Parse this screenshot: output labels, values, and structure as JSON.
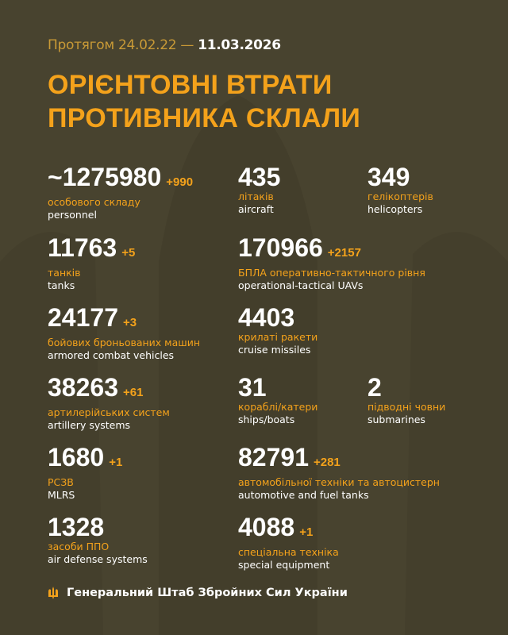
{
  "header": {
    "period_prefix": "Протягом 24.02.22 —",
    "period_end": "11.03.2026",
    "title_line1": "ОРІЄНТОВНІ ВТРАТИ",
    "title_line2": "ПРОТИВНИКА СКЛАЛИ"
  },
  "stats": [
    {
      "value": "~1275980",
      "delta": "+990",
      "ua": "особового складу",
      "en": "personnel"
    },
    {
      "value": "435",
      "delta": "",
      "ua": "літаків",
      "en": "aircraft"
    },
    {
      "value": "349",
      "delta": "",
      "ua": "гелікоптерів",
      "en": "helicopters"
    },
    {
      "value": "11763",
      "delta": "+5",
      "ua": "танків",
      "en": "tanks"
    },
    {
      "value": "170966",
      "delta": "+2157",
      "ua": "БПЛА оперативно-тактичного рівня",
      "en": "operational-tactical UAVs"
    },
    {
      "value": "24177",
      "delta": "+3",
      "ua": "бойових броньованих машин",
      "en": "armored combat vehicles"
    },
    {
      "value": "4403",
      "delta": "",
      "ua": "крилаті ракети",
      "en": "cruise missiles"
    },
    {
      "value": "38263",
      "delta": "+61",
      "ua": "артилерійських систем",
      "en": "artillery systems"
    },
    {
      "value": "31",
      "delta": "",
      "ua": "кораблі/катери",
      "en": "ships/boats"
    },
    {
      "value": "2",
      "delta": "",
      "ua": "підводні човни",
      "en": "submarines"
    },
    {
      "value": "1680",
      "delta": "+1",
      "ua": "РСЗВ",
      "en": "MLRS"
    },
    {
      "value": "82791",
      "delta": "+281",
      "ua": "автомобільної техніки та автоцистерн",
      "en": "automotive and fuel tanks"
    },
    {
      "value": "1328",
      "delta": "",
      "ua": "засоби ППО",
      "en": "air defense systems"
    },
    {
      "value": "4088",
      "delta": "+1",
      "ua": "спеціальна техніка",
      "en": "special equipment"
    }
  ],
  "footer": {
    "icon": "trident-icon",
    "text": "Генеральний Штаб Збройних Сил України"
  },
  "colors": {
    "background": "#48432f",
    "accent": "#f4a21b",
    "text": "#ffffff"
  }
}
